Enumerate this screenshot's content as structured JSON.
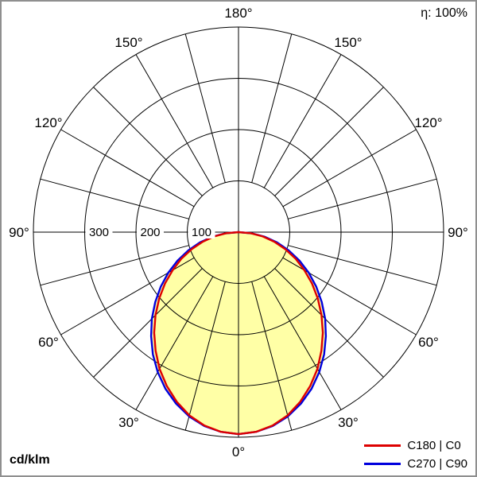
{
  "corner": {
    "efficiency": "η: 100%",
    "units": "cd/klm"
  },
  "chart_data": {
    "type": "polar",
    "subtype": "luminous-intensity-distribution",
    "units": "cd/klm",
    "efficiency": "η: 100%",
    "max_value": 400,
    "ring_values": [
      100,
      200,
      300,
      400
    ],
    "labeled_rings": [
      100,
      200,
      300
    ],
    "spoke_step_deg": 15,
    "angle_labels_deg": [
      0,
      30,
      60,
      90,
      120,
      150,
      180
    ],
    "angle_label_suffix": "°",
    "grid": true,
    "grid_color": "#000000",
    "fill_color": "#ffffa6",
    "legend_position": "bottom-right",
    "gamma_deg": [
      0,
      5,
      10,
      15,
      20,
      25,
      30,
      35,
      40,
      45,
      50,
      55,
      60,
      65,
      70,
      75,
      80,
      85,
      90
    ],
    "series": [
      {
        "name": "C180 | C0",
        "color": "#dd0000",
        "values": [
          394,
          391,
          383,
          370,
          352,
          331,
          308,
          282,
          256,
          229,
          202,
          175,
          148,
          123,
          97,
          72,
          48,
          24,
          0
        ]
      },
      {
        "name": "C270 | C90",
        "color": "#0000dd",
        "values": [
          394,
          391,
          384,
          372,
          356,
          337,
          315,
          291,
          265,
          239,
          212,
          185,
          158,
          131,
          104,
          78,
          52,
          26,
          0
        ]
      }
    ]
  }
}
